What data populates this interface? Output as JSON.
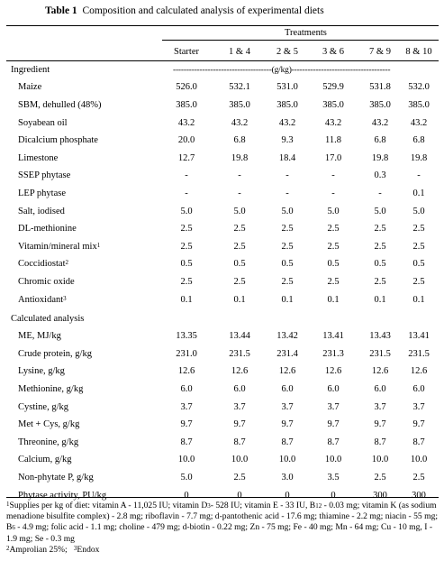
{
  "title": {
    "prefix": "Table 1",
    "text": "Composition and calculated analysis of experimental diets"
  },
  "treatments_label": "Treatments",
  "columns": [
    "Starter",
    "1 & 4",
    "2 & 5",
    "3 & 6",
    "7 & 9",
    "8 & 10"
  ],
  "sections": [
    {
      "heading": "Ingredient",
      "unit_line": "-------------------------------------(g/kg)-------------------------------------",
      "rows": [
        {
          "label": "Maize",
          "sup": "",
          "values": [
            "526.0",
            "532.1",
            "531.0",
            "529.9",
            "531.8",
            "532.0"
          ]
        },
        {
          "label": "SBM, dehulled (48%)",
          "sup": "",
          "values": [
            "385.0",
            "385.0",
            "385.0",
            "385.0",
            "385.0",
            "385.0"
          ]
        },
        {
          "label": "Soyabean oil",
          "sup": "",
          "values": [
            "43.2",
            "43.2",
            "43.2",
            "43.2",
            "43.2",
            "43.2"
          ]
        },
        {
          "label": "Dicalcium phosphate",
          "sup": "",
          "values": [
            "20.0",
            "6.8",
            "9.3",
            "11.8",
            "6.8",
            "6.8"
          ]
        },
        {
          "label": "Limestone",
          "sup": "",
          "values": [
            "12.7",
            "19.8",
            "18.4",
            "17.0",
            "19.8",
            "19.8"
          ]
        },
        {
          "label": "SSEP phytase",
          "sup": "",
          "values": [
            "-",
            "-",
            "-",
            "-",
            "0.3",
            "-"
          ]
        },
        {
          "label": "LEP phytase",
          "sup": "",
          "values": [
            "-",
            "-",
            "-",
            "-",
            "-",
            "0.1"
          ]
        },
        {
          "label": "Salt, iodised",
          "sup": "",
          "values": [
            "5.0",
            "5.0",
            "5.0",
            "5.0",
            "5.0",
            "5.0"
          ]
        },
        {
          "label": "DL-methionine",
          "sup": "",
          "values": [
            "2.5",
            "2.5",
            "2.5",
            "2.5",
            "2.5",
            "2.5"
          ]
        },
        {
          "label": "Vitamin/mineral mix",
          "sup": "1",
          "values": [
            "2.5",
            "2.5",
            "2.5",
            "2.5",
            "2.5",
            "2.5"
          ]
        },
        {
          "label": "Coccidiostat",
          "sup": "2",
          "values": [
            "0.5",
            "0.5",
            "0.5",
            "0.5",
            "0.5",
            "0.5"
          ]
        },
        {
          "label": "Chromic oxide",
          "sup": "",
          "values": [
            "2.5",
            "2.5",
            "2.5",
            "2.5",
            "2.5",
            "2.5"
          ]
        },
        {
          "label": "Antioxidant",
          "sup": "3",
          "values": [
            "0.1",
            "0.1",
            "0.1",
            "0.1",
            "0.1",
            "0.1"
          ]
        }
      ]
    },
    {
      "heading": "Calculated analysis",
      "unit_line": "",
      "rows": [
        {
          "label": "ME, MJ/kg",
          "sup": "",
          "values": [
            "13.35",
            "13.44",
            "13.42",
            "13.41",
            "13.43",
            "13.41"
          ]
        },
        {
          "label": "Crude protein, g/kg",
          "sup": "",
          "values": [
            "231.0",
            "231.5",
            "231.4",
            "231.3",
            "231.5",
            "231.5"
          ]
        },
        {
          "label": "Lysine, g/kg",
          "sup": "",
          "values": [
            "12.6",
            "12.6",
            "12.6",
            "12.6",
            "12.6",
            "12.6"
          ]
        },
        {
          "label": "Methionine, g/kg",
          "sup": "",
          "values": [
            "6.0",
            "6.0",
            "6.0",
            "6.0",
            "6.0",
            "6.0"
          ]
        },
        {
          "label": "Cystine, g/kg",
          "sup": "",
          "values": [
            "3.7",
            "3.7",
            "3.7",
            "3.7",
            "3.7",
            "3.7"
          ]
        },
        {
          "label": "Met + Cys, g/kg",
          "sup": "",
          "values": [
            "9.7",
            "9.7",
            "9.7",
            "9.7",
            "9.7",
            "9.7"
          ]
        },
        {
          "label": "Threonine, g/kg",
          "sup": "",
          "values": [
            "8.7",
            "8.7",
            "8.7",
            "8.7",
            "8.7",
            "8.7"
          ]
        },
        {
          "label": "Calcium, g/kg",
          "sup": "",
          "values": [
            "10.0",
            "10.0",
            "10.0",
            "10.0",
            "10.0",
            "10.0"
          ]
        },
        {
          "label": "Non-phytate P, g/kg",
          "sup": "",
          "values": [
            "5.0",
            "2.5",
            "3.0",
            "3.5",
            "2.5",
            "2.5"
          ]
        },
        {
          "label": "Phytase activity, PU/kg",
          "sup": "",
          "values": [
            "0",
            "0",
            "0",
            "0",
            "300",
            "300"
          ]
        }
      ]
    }
  ],
  "footnotes": {
    "fn1_mark": "1",
    "fn1_a": "Supplies per kg of diet:  vitamin A - 11,025 IU; vitamin D",
    "fn1_sub1": "3",
    "fn1_b": "- 528 IU; vitamin E - 33 IU, B",
    "fn1_sub2": "12",
    "fn1_c": " - 0.03 mg;  vitamin K (as sodium menadione bisulfite complex) - 2.8 mg; riboflavin - 7.7 mg; d-pantothenic acid - 17.6 mg; thiamine - 2.2 mg; niacin - 55 mg; B",
    "fn1_sub3": "6",
    "fn1_d": " - 4.9 mg; folic acid - 1.1 mg; choline - 479 mg; d-biotin - 0.22 mg; Zn - 75 mg; Fe - 40 mg; Mn - 64 mg; Cu - 10 mg, I - 1.9 mg; Se - 0.3 mg",
    "fn2_mark": "2",
    "fn2": "Amprolian 25%;",
    "fn3_mark": "3",
    "fn3": "Endox"
  }
}
